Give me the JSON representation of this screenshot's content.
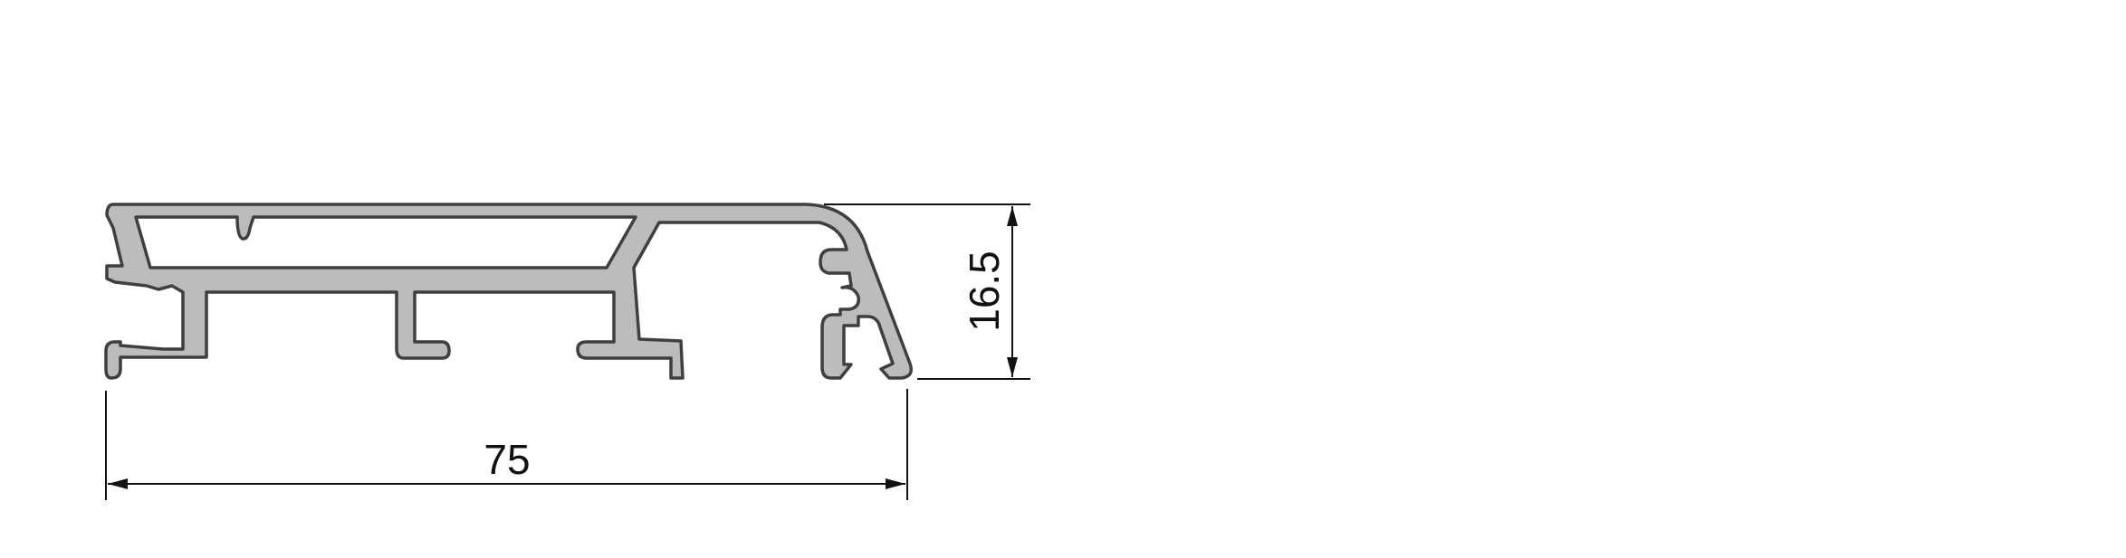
{
  "drawing": {
    "subject": "aluminium-extrusion-profile-cross-section",
    "profile_fill": "#bcbcbc",
    "profile_outline": "#3f3f3f",
    "dimension_color": "#111111"
  },
  "dimensions": {
    "width": "75",
    "height": "16.5"
  }
}
